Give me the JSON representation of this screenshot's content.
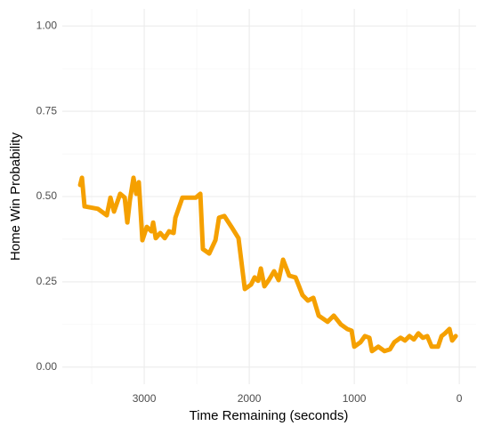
{
  "chart_data": {
    "type": "line",
    "x_label": "Time Remaining (seconds)",
    "y_label": "Home Win Probability",
    "x": [
      3610,
      3593,
      3568,
      3441,
      3356,
      3322,
      3288,
      3229,
      3186,
      3161,
      3136,
      3102,
      3076,
      3051,
      3017,
      2975,
      2932,
      2915,
      2890,
      2847,
      2805,
      2763,
      2720,
      2703,
      2636,
      2508,
      2466,
      2441,
      2381,
      2322,
      2288,
      2237,
      2169,
      2102,
      2042,
      1983,
      1949,
      1915,
      1890,
      1856,
      1814,
      1763,
      1720,
      1678,
      1619,
      1559,
      1492,
      1441,
      1390,
      1339,
      1254,
      1195,
      1127,
      1068,
      1025,
      1000,
      941,
      898,
      856,
      831,
      771,
      712,
      661,
      619,
      559,
      517,
      475,
      432,
      390,
      347,
      305,
      263,
      203,
      169,
      136,
      93,
      68,
      34
    ],
    "series": [
      {
        "name": "Home Win Probability",
        "color": "#f5a000",
        "values": [
          0.534,
          0.555,
          0.471,
          0.464,
          0.445,
          0.497,
          0.456,
          0.508,
          0.497,
          0.424,
          0.49,
          0.555,
          0.508,
          0.542,
          0.372,
          0.411,
          0.398,
          0.424,
          0.378,
          0.393,
          0.378,
          0.398,
          0.393,
          0.438,
          0.497,
          0.497,
          0.508,
          0.346,
          0.333,
          0.372,
          0.438,
          0.443,
          0.411,
          0.378,
          0.229,
          0.242,
          0.263,
          0.253,
          0.289,
          0.237,
          0.255,
          0.281,
          0.255,
          0.315,
          0.268,
          0.263,
          0.211,
          0.195,
          0.203,
          0.151,
          0.133,
          0.151,
          0.125,
          0.112,
          0.107,
          0.06,
          0.073,
          0.091,
          0.086,
          0.047,
          0.06,
          0.047,
          0.052,
          0.073,
          0.086,
          0.078,
          0.091,
          0.081,
          0.099,
          0.086,
          0.091,
          0.06,
          0.06,
          0.091,
          0.099,
          0.112,
          0.078,
          0.091
        ]
      }
    ],
    "xlim": [
      3780,
      -160
    ],
    "xticks": [
      3000,
      2000,
      1000,
      0
    ],
    "xminor": [
      3500,
      2500,
      1500,
      500
    ],
    "ylim": [
      -0.05,
      1.05
    ],
    "yticks": [
      {
        "value": 0,
        "label": "0.00"
      },
      {
        "value": 0.25,
        "label": "0.25"
      },
      {
        "value": 0.5,
        "label": "0.50"
      },
      {
        "value": 0.75,
        "label": "0.75"
      },
      {
        "value": 1,
        "label": "1.00"
      }
    ],
    "yminor": [
      0.125,
      0.375,
      0.625,
      0.875
    ],
    "grid": true
  }
}
